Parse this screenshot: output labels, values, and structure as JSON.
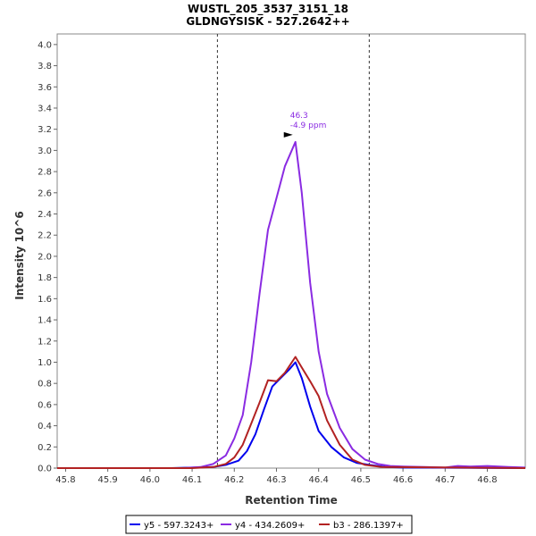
{
  "chart_data": {
    "type": "line",
    "title": "WUSTL_205_3537_3151_18",
    "subtitle": "GLDNGYSISK - 527.2642++",
    "xlabel": "Retention Time",
    "ylabel": "Intensity 10^6",
    "xlim": [
      45.78,
      46.89
    ],
    "ylim": [
      0,
      4.1
    ],
    "x_ticks": [
      "45.8",
      "45.9",
      "46.0",
      "46.1",
      "46.2",
      "46.3",
      "46.4",
      "46.5",
      "46.6",
      "46.7",
      "46.8"
    ],
    "y_ticks": [
      "0.0",
      "0.2",
      "0.4",
      "0.6",
      "0.8",
      "1.0",
      "1.2",
      "1.4",
      "1.6",
      "1.8",
      "2.0",
      "2.2",
      "2.4",
      "2.6",
      "2.8",
      "3.0",
      "3.2",
      "3.4",
      "3.6",
      "3.8",
      "4.0"
    ],
    "grid": false,
    "legend_position": "bottom",
    "vlines": [
      46.16,
      46.52
    ],
    "annotation": {
      "x": 46.345,
      "y": 3.08,
      "lines": [
        "46.3",
        "-4.9 ppm"
      ],
      "color": "#8a2be2"
    },
    "series": [
      {
        "name": "y5 - 597.3243+",
        "color": "#0000ee",
        "x": [
          45.78,
          46.05,
          46.1,
          46.15,
          46.18,
          46.21,
          46.23,
          46.25,
          46.27,
          46.29,
          46.31,
          46.33,
          46.345,
          46.36,
          46.38,
          46.4,
          46.43,
          46.46,
          46.49,
          46.52,
          46.56,
          46.6,
          46.89
        ],
        "values": [
          0,
          0,
          0.005,
          0.01,
          0.03,
          0.07,
          0.16,
          0.32,
          0.55,
          0.77,
          0.85,
          0.93,
          1.0,
          0.85,
          0.58,
          0.35,
          0.2,
          0.1,
          0.05,
          0.03,
          0.01,
          0.005,
          0
        ]
      },
      {
        "name": "y4 - 434.2609+",
        "color": "#8a2be2",
        "x": [
          45.78,
          46.08,
          46.12,
          46.15,
          46.18,
          46.2,
          46.22,
          46.24,
          46.26,
          46.28,
          46.3,
          46.32,
          46.345,
          46.36,
          46.38,
          46.4,
          46.42,
          46.45,
          46.48,
          46.51,
          46.54,
          46.57,
          46.6,
          46.65,
          46.7,
          46.73,
          46.76,
          46.8,
          46.85,
          46.89
        ],
        "values": [
          0,
          0,
          0.01,
          0.04,
          0.12,
          0.28,
          0.5,
          1.0,
          1.65,
          2.25,
          2.55,
          2.85,
          3.08,
          2.6,
          1.75,
          1.1,
          0.7,
          0.38,
          0.18,
          0.08,
          0.04,
          0.02,
          0.015,
          0.01,
          0.005,
          0.02,
          0.015,
          0.02,
          0.01,
          0.005
        ]
      },
      {
        "name": "b3 - 286.1397+",
        "color": "#b22222",
        "x": [
          45.78,
          46.1,
          46.15,
          46.18,
          46.2,
          46.22,
          46.24,
          46.26,
          46.28,
          46.3,
          46.32,
          46.345,
          46.36,
          46.38,
          46.4,
          46.42,
          46.45,
          46.48,
          46.51,
          46.55,
          46.89
        ],
        "values": [
          0,
          0,
          0.01,
          0.04,
          0.1,
          0.22,
          0.42,
          0.62,
          0.83,
          0.82,
          0.9,
          1.05,
          0.95,
          0.82,
          0.68,
          0.45,
          0.22,
          0.08,
          0.03,
          0.01,
          0
        ]
      }
    ]
  }
}
